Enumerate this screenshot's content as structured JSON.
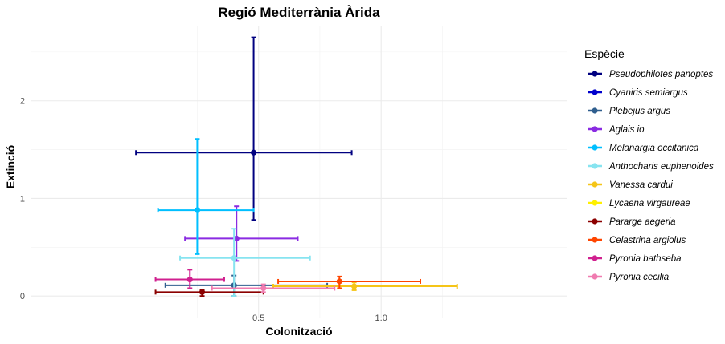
{
  "chart_data": {
    "type": "scatter",
    "title": "Regió Mediterrània Àrida",
    "xlabel": "Colonització",
    "ylabel": "Extinció",
    "xlim": [
      -0.43,
      1.76
    ],
    "ylim": [
      -0.22,
      2.77
    ],
    "x_ticks": [
      0.5,
      1.0
    ],
    "y_ticks": [
      0,
      1,
      2
    ],
    "x_tick_labels": [
      "0.5",
      "1.0"
    ],
    "y_tick_labels": [
      "0",
      "1",
      "2"
    ],
    "grid": true,
    "legend_title": "Espècie",
    "legend_position": "right",
    "series": [
      {
        "name": "Pseudophilotes panoptes",
        "color": "#000080",
        "x": 0.48,
        "y": 1.47,
        "x_low": 0.0,
        "x_high": 0.88,
        "y_low": 0.78,
        "y_high": 2.65
      },
      {
        "name": "Cyaniris semiargus",
        "color": "#0000CD",
        "x": null,
        "y": null
      },
      {
        "name": "Plebejus argus",
        "color": "#2F5E8E",
        "x": 0.4,
        "y": 0.11,
        "x_low": 0.12,
        "x_high": 0.78,
        "y_low": 0.0,
        "y_high": 0.21
      },
      {
        "name": "Aglais io",
        "color": "#8A2BE2",
        "x": 0.41,
        "y": 0.59,
        "x_low": 0.2,
        "x_high": 0.66,
        "y_low": 0.36,
        "y_high": 0.92
      },
      {
        "name": "Melanargia occitanica",
        "color": "#00BFFF",
        "x": 0.25,
        "y": 0.88,
        "x_low": 0.09,
        "x_high": 0.48,
        "y_low": 0.43,
        "y_high": 1.61
      },
      {
        "name": "Anthocharis euphenoides",
        "color": "#87E4F0",
        "x": 0.4,
        "y": 0.39,
        "x_low": 0.18,
        "x_high": 0.71,
        "y_low": 0.0,
        "y_high": 0.69
      },
      {
        "name": "Vanessa cardui",
        "color": "#F5C518",
        "x": 0.89,
        "y": 0.1,
        "x_low": 0.56,
        "x_high": 1.31,
        "y_low": 0.06,
        "y_high": 0.14
      },
      {
        "name": "Lycaena virgaureae",
        "color": "#FFF000",
        "x": null,
        "y": null
      },
      {
        "name": "Pararge aegeria",
        "color": "#8B0000",
        "x": 0.27,
        "y": 0.04,
        "x_low": 0.08,
        "x_high": 0.52,
        "y_low": 0.0,
        "y_high": 0.06
      },
      {
        "name": "Celastrina argiolus",
        "color": "#FF4500",
        "x": 0.83,
        "y": 0.15,
        "x_low": 0.58,
        "x_high": 1.16,
        "y_low": 0.08,
        "y_high": 0.2
      },
      {
        "name": "Pyronia bathseba",
        "color": "#D0208F",
        "x": 0.22,
        "y": 0.17,
        "x_low": 0.08,
        "x_high": 0.36,
        "y_low": 0.08,
        "y_high": 0.27
      },
      {
        "name": "Pyronia cecilia",
        "color": "#F07BB0",
        "x": 0.52,
        "y": 0.08,
        "x_low": 0.31,
        "x_high": 0.81,
        "y_low": 0.04,
        "y_high": 0.12
      }
    ]
  }
}
